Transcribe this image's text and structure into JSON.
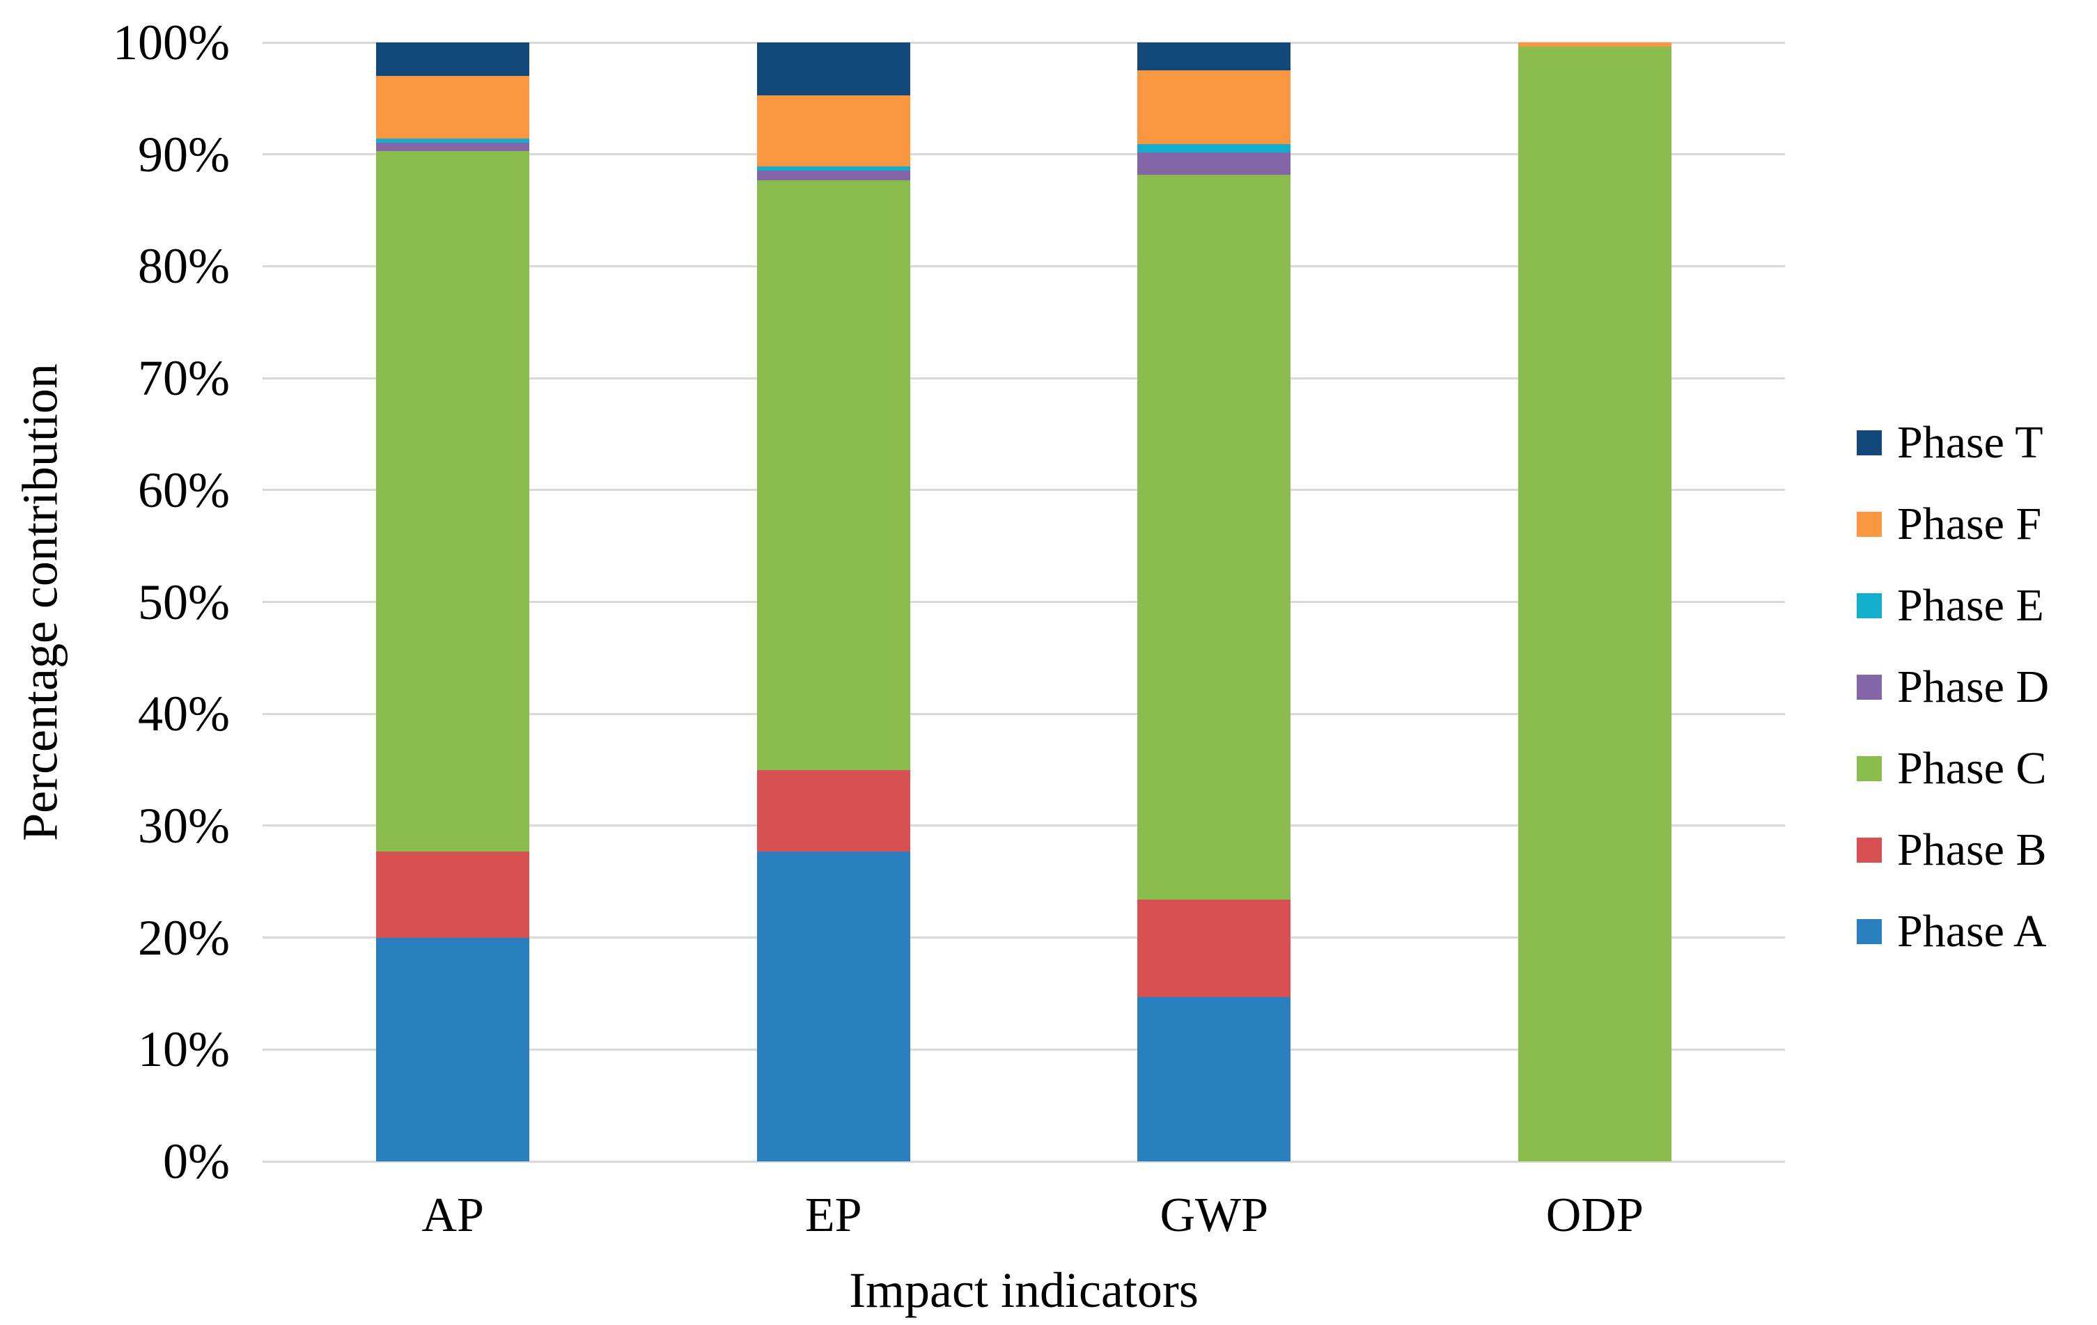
{
  "chart_data": {
    "type": "bar",
    "variant": "stacked-100-percent",
    "title": "",
    "xlabel": "Impact indicators",
    "ylabel": "Percentage contribution",
    "categories": [
      "AP",
      "EP",
      "GWP",
      "ODP"
    ],
    "series": [
      {
        "name": "Phase A",
        "color": "#2A80BF",
        "values": [
          20.0,
          27.7,
          14.7,
          0
        ]
      },
      {
        "name": "Phase B",
        "color": "#D75052",
        "values": [
          7.7,
          7.3,
          8.7,
          0
        ]
      },
      {
        "name": "Phase C",
        "color": "#8BBD4E",
        "values": [
          62.6,
          52.65,
          64.8,
          99.6
        ]
      },
      {
        "name": "Phase D",
        "color": "#8465A8",
        "values": [
          0.75,
          0.9,
          2.0,
          0
        ]
      },
      {
        "name": "Phase E",
        "color": "#12AECB",
        "values": [
          0.35,
          0.35,
          0.7,
          0
        ]
      },
      {
        "name": "Phase F",
        "color": "#F9963F",
        "values": [
          5.6,
          6.4,
          6.6,
          0.4
        ]
      },
      {
        "name": "Phase T",
        "color": "#12497A",
        "values": [
          3.0,
          4.7,
          2.5,
          0
        ]
      }
    ],
    "legend": {
      "position": "right",
      "order_top_to_bottom": [
        "Phase T",
        "Phase F",
        "Phase E",
        "Phase D",
        "Phase C",
        "Phase B",
        "Phase A"
      ]
    },
    "y_ticks": [
      "0%",
      "10%",
      "20%",
      "30%",
      "40%",
      "50%",
      "60%",
      "70%",
      "80%",
      "90%",
      "100%"
    ],
    "ylim": [
      0,
      100
    ],
    "grid": true,
    "gridline_color": "#D9D9D9",
    "background_color": "#FFFFFF",
    "text_color": "#000000"
  }
}
